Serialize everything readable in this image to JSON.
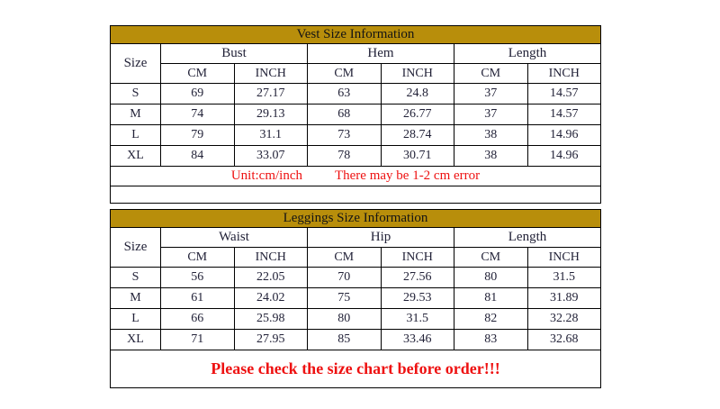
{
  "colors": {
    "header_gold": "#b88e0b",
    "accent_red": "#ee1111",
    "table_text": "#222238",
    "border": "#000000",
    "background": "#ffffff"
  },
  "chart_data": [
    {
      "type": "table",
      "title": "Vest Size Information",
      "corner_label": "Size",
      "column_groups": [
        "Bust",
        "Hem",
        "Length"
      ],
      "unit_row": [
        "CM",
        "INCH",
        "CM",
        "INCH",
        "CM",
        "INCH"
      ],
      "rows": [
        [
          "S",
          "69",
          "27.17",
          "63",
          "24.8",
          "37",
          "14.57"
        ],
        [
          "M",
          "74",
          "29.13",
          "68",
          "26.77",
          "37",
          "14.57"
        ],
        [
          "L",
          "79",
          "31.1",
          "73",
          "28.74",
          "38",
          "14.96"
        ],
        [
          "XL",
          "84",
          "33.07",
          "78",
          "30.71",
          "38",
          "14.96"
        ]
      ],
      "footnotes": [
        "Unit:cm/inch",
        "There may be 1-2 cm error"
      ]
    },
    {
      "type": "table",
      "title": "Leggings Size Information",
      "corner_label": "Size",
      "column_groups": [
        "Waist",
        "Hip",
        "Length"
      ],
      "unit_row": [
        "CM",
        "INCH",
        "CM",
        "INCH",
        "CM",
        "INCH"
      ],
      "rows": [
        [
          "S",
          "56",
          "22.05",
          "70",
          "27.56",
          "80",
          "31.5"
        ],
        [
          "M",
          "61",
          "24.02",
          "75",
          "29.53",
          "81",
          "31.89"
        ],
        [
          "L",
          "66",
          "25.98",
          "80",
          "31.5",
          "82",
          "32.28"
        ],
        [
          "XL",
          "71",
          "27.95",
          "85",
          "33.46",
          "83",
          "32.68"
        ]
      ],
      "notice": "Please check the size chart before order!!!"
    }
  ]
}
